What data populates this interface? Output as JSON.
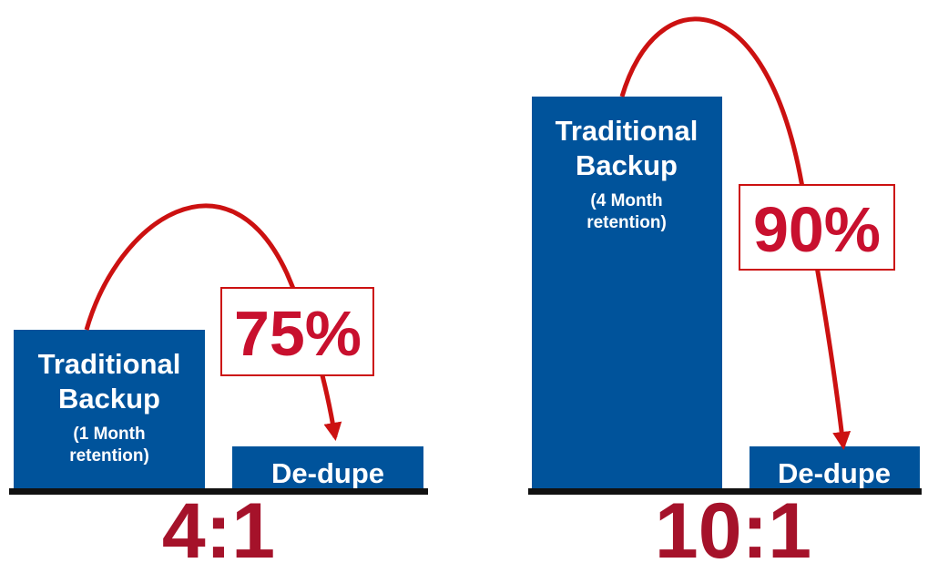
{
  "panels": [
    {
      "title_lines": [
        "Traditional",
        "Backup"
      ],
      "retention_lines": [
        "(1 Month",
        "retention)"
      ],
      "dedupe": "De-dupe",
      "reduction": "75%",
      "ratio": "4:1"
    },
    {
      "title_lines": [
        "Traditional",
        "Backup"
      ],
      "retention_lines": [
        "(4 Month",
        "retention)"
      ],
      "dedupe": "De-dupe",
      "reduction": "90%",
      "ratio": "10:1"
    }
  ]
}
